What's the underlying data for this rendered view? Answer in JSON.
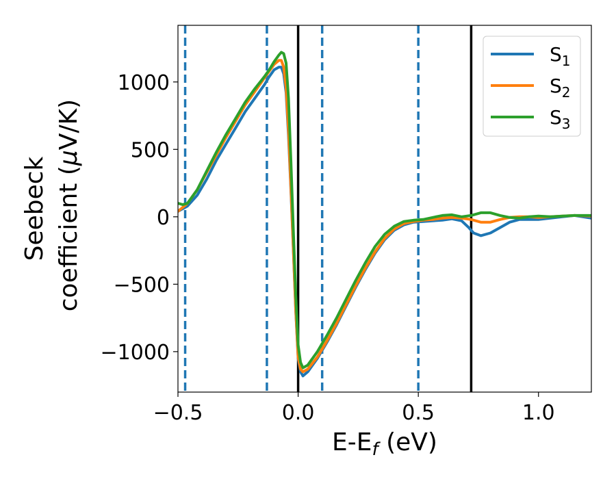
{
  "chart_data": {
    "type": "line",
    "xlabel": "E-E",
    "xlabel_sub": "f",
    "xlabel_unit": " (eV)",
    "ylabel_line1": "Seebeck",
    "ylabel_line2_a": "coefficient  (",
    "ylabel_mu": "μ",
    "ylabel_line2_b": "V/K)",
    "xlim": [
      -0.5,
      1.22
    ],
    "ylim": [
      -1300,
      1420
    ],
    "x_ticks": [
      -0.5,
      0.0,
      0.5,
      1.0
    ],
    "x_tick_labels": [
      "−0.5",
      "0.0",
      "0.5",
      "1.0"
    ],
    "y_ticks": [
      -1000,
      -500,
      0,
      500,
      1000
    ],
    "y_tick_labels": [
      "−1000",
      "−500",
      "0",
      "500",
      "1000"
    ],
    "grid": false,
    "legend_position": "top-right",
    "vlines": [
      {
        "x": -0.47,
        "style": "dashed",
        "color": "#1f77b4"
      },
      {
        "x": -0.13,
        "style": "dashed",
        "color": "#1f77b4"
      },
      {
        "x": 0.1,
        "style": "dashed",
        "color": "#1f77b4"
      },
      {
        "x": 0.5,
        "style": "dashed",
        "color": "#1f77b4"
      },
      {
        "x": 0.0,
        "style": "solid",
        "color": "#000000"
      },
      {
        "x": 0.72,
        "style": "solid",
        "color": "#000000"
      }
    ],
    "series": [
      {
        "name": "S",
        "sub": "1",
        "color": "#1f77b4",
        "points": [
          [
            -0.5,
            40
          ],
          [
            -0.48,
            60
          ],
          [
            -0.46,
            80
          ],
          [
            -0.42,
            160
          ],
          [
            -0.38,
            280
          ],
          [
            -0.34,
            420
          ],
          [
            -0.3,
            540
          ],
          [
            -0.26,
            660
          ],
          [
            -0.22,
            780
          ],
          [
            -0.18,
            880
          ],
          [
            -0.14,
            980
          ],
          [
            -0.12,
            1040
          ],
          [
            -0.1,
            1090
          ],
          [
            -0.08,
            1110
          ],
          [
            -0.07,
            1110
          ],
          [
            -0.06,
            1060
          ],
          [
            -0.05,
            920
          ],
          [
            -0.04,
            600
          ],
          [
            -0.03,
            200
          ],
          [
            -0.02,
            -250
          ],
          [
            -0.01,
            -700
          ],
          [
            0.0,
            -1050
          ],
          [
            0.01,
            -1150
          ],
          [
            0.02,
            -1180
          ],
          [
            0.04,
            -1150
          ],
          [
            0.08,
            -1050
          ],
          [
            0.12,
            -930
          ],
          [
            0.16,
            -800
          ],
          [
            0.2,
            -660
          ],
          [
            0.24,
            -520
          ],
          [
            0.28,
            -390
          ],
          [
            0.32,
            -270
          ],
          [
            0.36,
            -170
          ],
          [
            0.4,
            -100
          ],
          [
            0.44,
            -60
          ],
          [
            0.48,
            -40
          ],
          [
            0.52,
            -35
          ],
          [
            0.56,
            -30
          ],
          [
            0.6,
            -25
          ],
          [
            0.64,
            -15
          ],
          [
            0.68,
            -30
          ],
          [
            0.71,
            -80
          ],
          [
            0.73,
            -120
          ],
          [
            0.76,
            -140
          ],
          [
            0.8,
            -120
          ],
          [
            0.84,
            -80
          ],
          [
            0.88,
            -40
          ],
          [
            0.92,
            -20
          ],
          [
            0.96,
            -20
          ],
          [
            1.0,
            -20
          ],
          [
            1.05,
            -10
          ],
          [
            1.1,
            0
          ],
          [
            1.15,
            10
          ],
          [
            1.22,
            -10
          ]
        ]
      },
      {
        "name": "S",
        "sub": "2",
        "color": "#ff7f0e",
        "points": [
          [
            -0.5,
            40
          ],
          [
            -0.48,
            70
          ],
          [
            -0.46,
            100
          ],
          [
            -0.42,
            200
          ],
          [
            -0.38,
            330
          ],
          [
            -0.34,
            460
          ],
          [
            -0.3,
            590
          ],
          [
            -0.26,
            710
          ],
          [
            -0.22,
            830
          ],
          [
            -0.18,
            930
          ],
          [
            -0.14,
            1030
          ],
          [
            -0.12,
            1080
          ],
          [
            -0.1,
            1130
          ],
          [
            -0.08,
            1160
          ],
          [
            -0.07,
            1160
          ],
          [
            -0.06,
            1110
          ],
          [
            -0.05,
            960
          ],
          [
            -0.04,
            640
          ],
          [
            -0.03,
            220
          ],
          [
            -0.02,
            -240
          ],
          [
            -0.01,
            -690
          ],
          [
            0.0,
            -1040
          ],
          [
            0.01,
            -1130
          ],
          [
            0.02,
            -1150
          ],
          [
            0.04,
            -1130
          ],
          [
            0.08,
            -1040
          ],
          [
            0.12,
            -920
          ],
          [
            0.16,
            -790
          ],
          [
            0.2,
            -650
          ],
          [
            0.24,
            -510
          ],
          [
            0.28,
            -380
          ],
          [
            0.32,
            -260
          ],
          [
            0.36,
            -160
          ],
          [
            0.4,
            -90
          ],
          [
            0.44,
            -50
          ],
          [
            0.48,
            -35
          ],
          [
            0.52,
            -25
          ],
          [
            0.56,
            -20
          ],
          [
            0.6,
            -10
          ],
          [
            0.64,
            -5
          ],
          [
            0.68,
            -10
          ],
          [
            0.72,
            -20
          ],
          [
            0.76,
            -40
          ],
          [
            0.8,
            -40
          ],
          [
            0.84,
            -20
          ],
          [
            0.88,
            -5
          ],
          [
            0.92,
            0
          ],
          [
            0.96,
            0
          ],
          [
            1.0,
            -5
          ],
          [
            1.05,
            0
          ],
          [
            1.1,
            5
          ],
          [
            1.15,
            10
          ],
          [
            1.22,
            5
          ]
        ]
      },
      {
        "name": "S",
        "sub": "3",
        "color": "#2ca02c",
        "points": [
          [
            -0.5,
            100
          ],
          [
            -0.48,
            90
          ],
          [
            -0.46,
            100
          ],
          [
            -0.42,
            200
          ],
          [
            -0.38,
            340
          ],
          [
            -0.34,
            480
          ],
          [
            -0.3,
            610
          ],
          [
            -0.26,
            730
          ],
          [
            -0.22,
            850
          ],
          [
            -0.18,
            950
          ],
          [
            -0.14,
            1040
          ],
          [
            -0.12,
            1090
          ],
          [
            -0.1,
            1150
          ],
          [
            -0.08,
            1200
          ],
          [
            -0.07,
            1220
          ],
          [
            -0.06,
            1210
          ],
          [
            -0.05,
            1140
          ],
          [
            -0.04,
            880
          ],
          [
            -0.03,
            420
          ],
          [
            -0.02,
            -100
          ],
          [
            -0.01,
            -580
          ],
          [
            0.0,
            -950
          ],
          [
            0.01,
            -1080
          ],
          [
            0.02,
            -1120
          ],
          [
            0.04,
            -1100
          ],
          [
            0.08,
            -1000
          ],
          [
            0.12,
            -880
          ],
          [
            0.16,
            -750
          ],
          [
            0.2,
            -610
          ],
          [
            0.24,
            -470
          ],
          [
            0.28,
            -340
          ],
          [
            0.32,
            -220
          ],
          [
            0.36,
            -130
          ],
          [
            0.4,
            -70
          ],
          [
            0.44,
            -35
          ],
          [
            0.48,
            -25
          ],
          [
            0.52,
            -20
          ],
          [
            0.56,
            -5
          ],
          [
            0.6,
            10
          ],
          [
            0.64,
            15
          ],
          [
            0.68,
            0
          ],
          [
            0.72,
            10
          ],
          [
            0.76,
            30
          ],
          [
            0.8,
            30
          ],
          [
            0.84,
            10
          ],
          [
            0.88,
            -5
          ],
          [
            0.92,
            -10
          ],
          [
            0.96,
            0
          ],
          [
            1.0,
            5
          ],
          [
            1.05,
            0
          ],
          [
            1.1,
            5
          ],
          [
            1.15,
            10
          ],
          [
            1.22,
            10
          ]
        ]
      }
    ]
  }
}
